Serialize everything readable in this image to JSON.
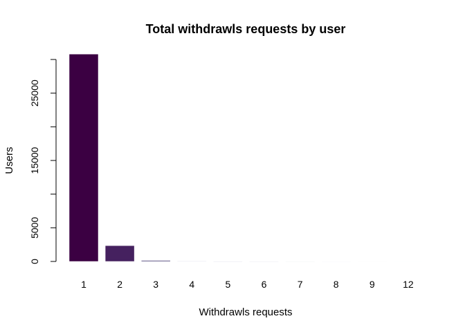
{
  "chart_data": {
    "type": "bar",
    "title": "Total withdrawls requests by user",
    "xlabel": "Withdrawls requests",
    "ylabel": "Users",
    "categories": [
      "1",
      "2",
      "3",
      "4",
      "5",
      "6",
      "7",
      "8",
      "9",
      "12"
    ],
    "values": [
      30800,
      2350,
      150,
      40,
      10,
      5,
      3,
      2,
      1,
      1
    ],
    "yticks": [
      0,
      5000,
      15000,
      25000
    ],
    "ylim": [
      0,
      30000
    ],
    "grid": false,
    "colors": [
      "#3b0042",
      "#45215f",
      "#554a7f",
      "#6d6e9b",
      "#8a91b3",
      "#a8b2c8",
      "#c5d0db",
      "#dde6ec",
      "#eef4f5",
      "#f7fbfb"
    ]
  }
}
